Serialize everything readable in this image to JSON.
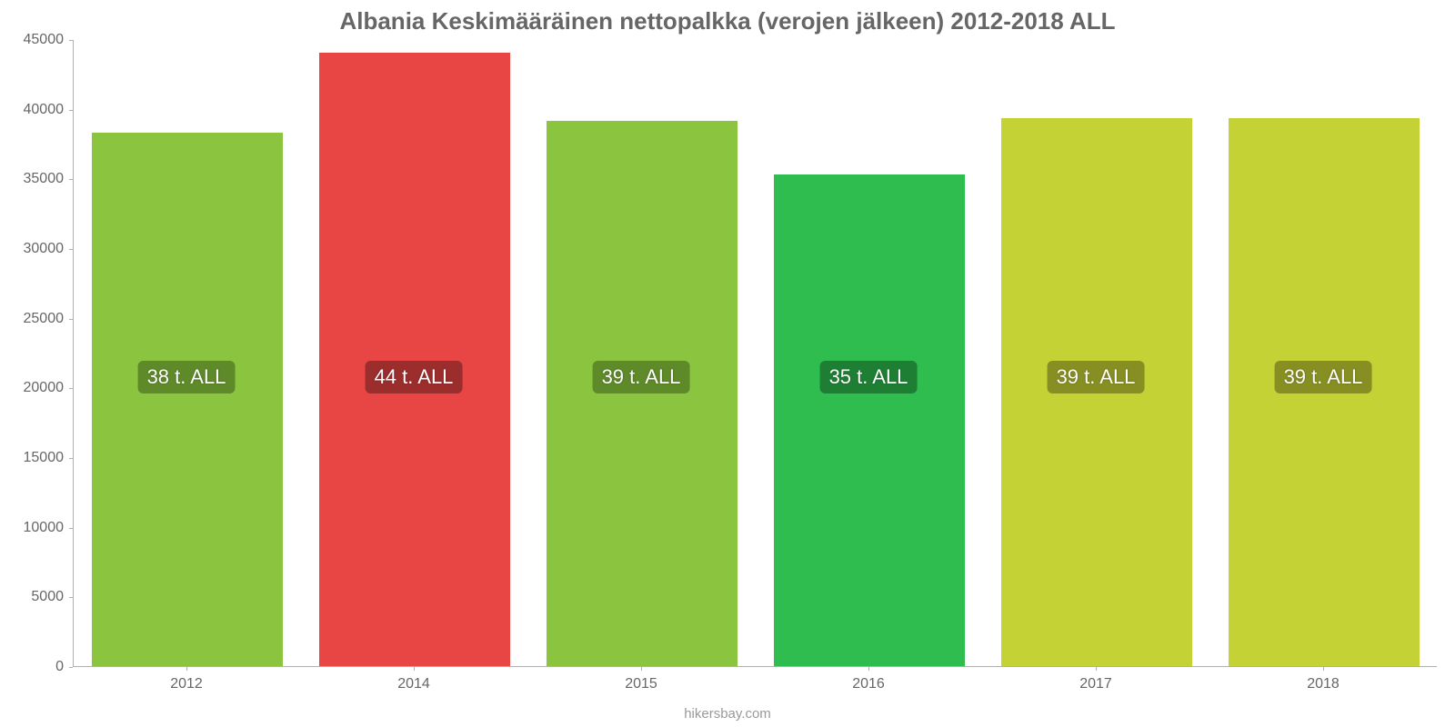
{
  "chart": {
    "type": "bar",
    "title": "Albania Keskimääräinen nettopalkka (verojen jälkeen) 2012-2018 ALL",
    "title_color": "#666666",
    "title_fontsize": 26,
    "background_color": "#ffffff",
    "axis_color": "#b0b0b0",
    "tick_label_color": "#666666",
    "tick_fontsize": 16,
    "footer": "hikersbay.com",
    "footer_color": "#999999",
    "ylim": [
      0,
      45000
    ],
    "ytick_step": 5000,
    "yticks": [
      0,
      5000,
      10000,
      15000,
      20000,
      25000,
      30000,
      35000,
      40000,
      45000
    ],
    "categories": [
      "2012",
      "2014",
      "2015",
      "2016",
      "2017",
      "2018"
    ],
    "values": [
      38300,
      44000,
      39100,
      35300,
      39300,
      39300
    ],
    "bar_labels": [
      "38 t. ALL",
      "44 t. ALL",
      "39 t. ALL",
      "35 t. ALL",
      "39 t. ALL",
      "39 t. ALL"
    ],
    "bar_colors": [
      "#8bc540",
      "#e84545",
      "#8bc540",
      "#2ebd4e",
      "#c5d235",
      "#c5d235"
    ],
    "label_bg_colors": [
      "#5f8a2a",
      "#9c2d2d",
      "#5f8a2a",
      "#1e7f34",
      "#878f23",
      "#878f23"
    ],
    "label_text_color": "#ffffff",
    "label_fontsize": 22,
    "bar_width_ratio": 0.84,
    "label_y_value": 20800
  }
}
